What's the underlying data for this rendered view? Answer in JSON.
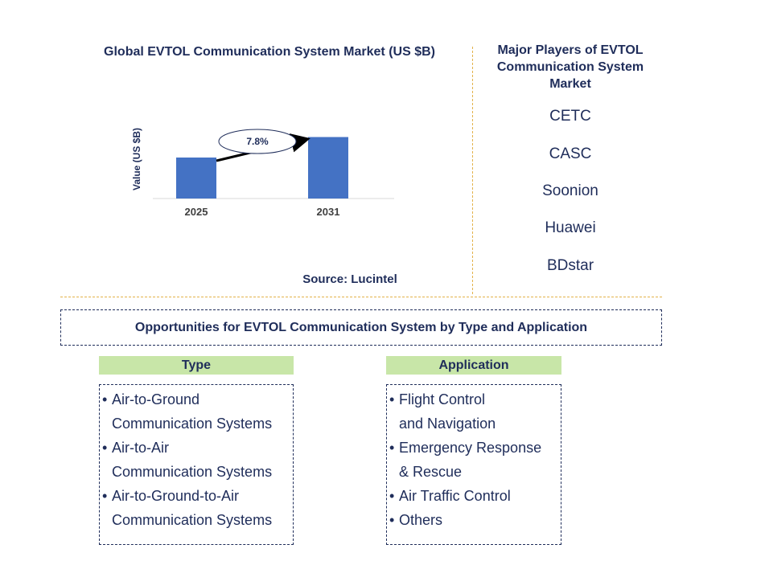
{
  "chart": {
    "title": "Global EVTOL Communication System Market (US $B)",
    "source": "Source: Lucintel",
    "growth_label": "7.8%"
  },
  "chart_data": {
    "type": "bar",
    "categories": [
      "2025",
      "2031"
    ],
    "values": [
      0.6,
      0.9
    ],
    "ylabel": "Value (US $B)",
    "xlabel": "",
    "ylim": [
      0,
      1.0
    ],
    "grid": false,
    "bar_color": "#4472c4",
    "annotation": "7.8%"
  },
  "players": {
    "title": "Major Players of EVTOL Communication System Market",
    "items": [
      "CETC",
      "CASC",
      "Soonion",
      "Huawei",
      "BDstar"
    ]
  },
  "opportunities": {
    "title": "Opportunities for EVTOL Communication System by Type and Application",
    "type_header": "Type",
    "application_header": "Application",
    "type_items": [
      [
        "Air-to-Ground",
        "Communication Systems"
      ],
      [
        "Air-to-Air",
        "Communication Systems"
      ],
      [
        "Air-to-Ground-to-Air",
        "Communication Systems"
      ]
    ],
    "application_items": [
      [
        "Flight Control",
        "and Navigation"
      ],
      [
        "Emergency Response",
        "& Rescue"
      ],
      [
        "Air Traffic Control"
      ],
      [
        "Others"
      ]
    ]
  },
  "colors": {
    "text": "#1f2d5a",
    "bar": "#4472c4",
    "header_bg": "#c8e6a8",
    "separator": "#e3b24a"
  }
}
